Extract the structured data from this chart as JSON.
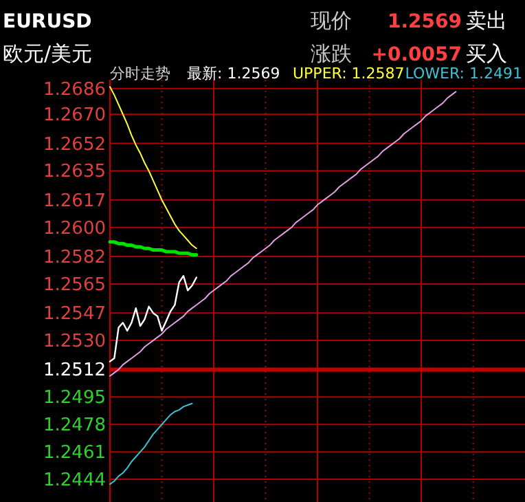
{
  "chart_data": {
    "type": "line",
    "title": "EURUSD",
    "subtitle": "欧元/美元",
    "annotations": [
      "现价",
      "1.2569",
      "卖出",
      "涨跌",
      "+0.0057",
      "买入",
      "分时走势",
      "最新: 1.2569",
      "UPPER: 1.2587",
      "LOWER: 1.2491"
    ],
    "categories": [
      null,
      null,
      null,
      null,
      null,
      null,
      null,
      null,
      null,
      null,
      null,
      null,
      null,
      null,
      null,
      null,
      null,
      null,
      null,
      null,
      null,
      null,
      null,
      null,
      null,
      null,
      null,
      null,
      null,
      null,
      null,
      null,
      null,
      null,
      null,
      null,
      null,
      null,
      null,
      null,
      null,
      null,
      null,
      null,
      null,
      null,
      null,
      null,
      null,
      null,
      null,
      null,
      null,
      null,
      null,
      null,
      null,
      null,
      null,
      null,
      null,
      null,
      null,
      null,
      null,
      null,
      null,
      null,
      null,
      null,
      null,
      null,
      null,
      null,
      null,
      null,
      null,
      null,
      null,
      null,
      null,
      null,
      null,
      null,
      null,
      null,
      null,
      null,
      null,
      null,
      null,
      null,
      null,
      null,
      null,
      null
    ],
    "ylim": [
      1.243,
      1.2688
    ],
    "yticks": [
      1.2686,
      {
        "value": 1.267,
        "label": "1.2670"
      },
      1.2652,
      1.2635,
      1.2617,
      {
        "value": 1.26,
        "label": "1.2600"
      },
      1.2582,
      1.2565,
      1.2547,
      {
        "value": 1.253,
        "label": "1.2530"
      },
      1.2512,
      1.2495,
      1.2478,
      1.2461,
      1.2444
    ],
    "grid": true,
    "tick_labels": "y",
    "ref_lines": [
      {
        "axis": "y",
        "value": 1.2512,
        "color": "#c00000"
      }
    ],
    "series": [
      {
        "color": "#ffffff",
        "values": [
          1.2517,
          1.2519,
          1.2538,
          1.2541,
          1.2536,
          1.2541,
          1.255,
          1.2539,
          1.2543,
          1.2551,
          1.2547,
          1.2545,
          1.2536,
          1.2542,
          1.2548,
          1.2552,
          1.2566,
          1.257,
          1.2561,
          1.2564,
          1.2569,
          null,
          null,
          null,
          null,
          null,
          null,
          null,
          null,
          null,
          null,
          null,
          null,
          null,
          null,
          null,
          null,
          null,
          null,
          null,
          null,
          null,
          null,
          null,
          null,
          null,
          null,
          null,
          null,
          null,
          null,
          null,
          null,
          null,
          null,
          null,
          null,
          null,
          null,
          null,
          null,
          null,
          null,
          null,
          null,
          null,
          null,
          null,
          null,
          null,
          null,
          null,
          null,
          null,
          null,
          null,
          null,
          null,
          null,
          null,
          null,
          null,
          null,
          null,
          null,
          null,
          null,
          null,
          null,
          null,
          null,
          null,
          null,
          null,
          null,
          null
        ]
      },
      {
        "color": "#ffff40",
        "values": [
          1.2687,
          1.2682,
          1.2676,
          1.267,
          1.2664,
          1.2657,
          1.2651,
          1.2646,
          1.264,
          1.2635,
          1.2629,
          1.2623,
          1.2617,
          1.2612,
          1.2607,
          1.2602,
          1.2598,
          1.2595,
          1.2592,
          1.2589,
          1.2587,
          null,
          null,
          null,
          null,
          null,
          null,
          null,
          null,
          null,
          null,
          null,
          null,
          null,
          null,
          null,
          null,
          null,
          null,
          null,
          null,
          null,
          null,
          null,
          null,
          null,
          null,
          null,
          null,
          null,
          null,
          null,
          null,
          null,
          null,
          null,
          null,
          null,
          null,
          null,
          null,
          null,
          null,
          null,
          null,
          null,
          null,
          null,
          null,
          null,
          null,
          null,
          null,
          null,
          null,
          null,
          null,
          null,
          null,
          null,
          null,
          null,
          null,
          null,
          null,
          null,
          null,
          null,
          null,
          null,
          null,
          null,
          null,
          null,
          null,
          null
        ]
      },
      {
        "color": "#00e000",
        "values": [
          1.2591,
          1.2591,
          1.259,
          1.259,
          1.2589,
          1.2589,
          1.2588,
          1.2588,
          1.2587,
          1.2587,
          1.2586,
          1.2586,
          1.2586,
          1.2585,
          1.2585,
          1.2585,
          1.2584,
          1.2584,
          1.2584,
          1.2583,
          1.2583,
          null,
          null,
          null,
          null,
          null,
          null,
          null,
          null,
          null,
          null,
          null,
          null,
          null,
          null,
          null,
          null,
          null,
          null,
          null,
          null,
          null,
          null,
          null,
          null,
          null,
          null,
          null,
          null,
          null,
          null,
          null,
          null,
          null,
          null,
          null,
          null,
          null,
          null,
          null,
          null,
          null,
          null,
          null,
          null,
          null,
          null,
          null,
          null,
          null,
          null,
          null,
          null,
          null,
          null,
          null,
          null,
          null,
          null,
          null,
          null,
          null,
          null,
          null,
          null,
          null,
          null,
          null,
          null,
          null,
          null,
          null,
          null,
          null,
          null,
          null
        ]
      },
      {
        "color": "#40c0d0",
        "values": [
          1.2441,
          1.2443,
          1.2446,
          1.2448,
          1.2451,
          1.2455,
          1.2458,
          1.2461,
          1.2464,
          1.2468,
          1.2472,
          1.2475,
          1.2478,
          1.2481,
          1.2484,
          1.2486,
          1.2487,
          1.2489,
          1.249,
          1.2491,
          null,
          null,
          null,
          null,
          null,
          null,
          null,
          null,
          null,
          null,
          null,
          null,
          null,
          null,
          null,
          null,
          null,
          null,
          null,
          null,
          null,
          null,
          null,
          null,
          null,
          null,
          null,
          null,
          null,
          null,
          null,
          null,
          null,
          null,
          null,
          null,
          null,
          null,
          null,
          null,
          null,
          null,
          null,
          null,
          null,
          null,
          null,
          null,
          null,
          null,
          null,
          null,
          null,
          null,
          null,
          null,
          null,
          null,
          null,
          null,
          null,
          null,
          null,
          null,
          null,
          null,
          null,
          null,
          null,
          null,
          null,
          null,
          null,
          null,
          null,
          null
        ]
      },
      {
        "color": "#e0a0e0",
        "values": [
          1.2508,
          1.251,
          1.2512,
          1.2515,
          1.2517,
          1.2519,
          1.2521,
          1.2523,
          1.2526,
          1.2528,
          1.253,
          1.2532,
          1.2534,
          1.2537,
          1.2539,
          1.2541,
          1.2543,
          1.2545,
          1.2548,
          1.255,
          1.2552,
          1.2554,
          1.2556,
          1.2559,
          1.2561,
          1.2563,
          1.2565,
          1.2567,
          1.257,
          1.2572,
          1.2574,
          1.2576,
          1.2578,
          1.2581,
          1.2583,
          1.2585,
          1.2587,
          1.2589,
          1.2592,
          1.2594,
          1.2596,
          1.2598,
          1.26,
          1.2603,
          1.2605,
          1.2607,
          1.2609,
          1.2611,
          1.2614,
          1.2616,
          1.2618,
          1.262,
          1.2622,
          1.2625,
          1.2627,
          1.2629,
          1.2631,
          1.2633,
          1.2636,
          1.2638,
          1.264,
          1.2642,
          1.2644,
          1.2647,
          1.2649,
          1.2651,
          1.2653,
          1.2655,
          1.2658,
          1.266,
          1.2662,
          1.2664,
          1.2666,
          1.2669,
          1.2671,
          1.2673,
          1.2675,
          1.2677,
          1.268,
          1.2682,
          1.2684,
          null,
          null,
          null,
          null,
          null,
          null,
          null,
          null,
          null,
          null,
          null,
          null,
          null,
          null,
          null
        ]
      }
    ]
  }
}
